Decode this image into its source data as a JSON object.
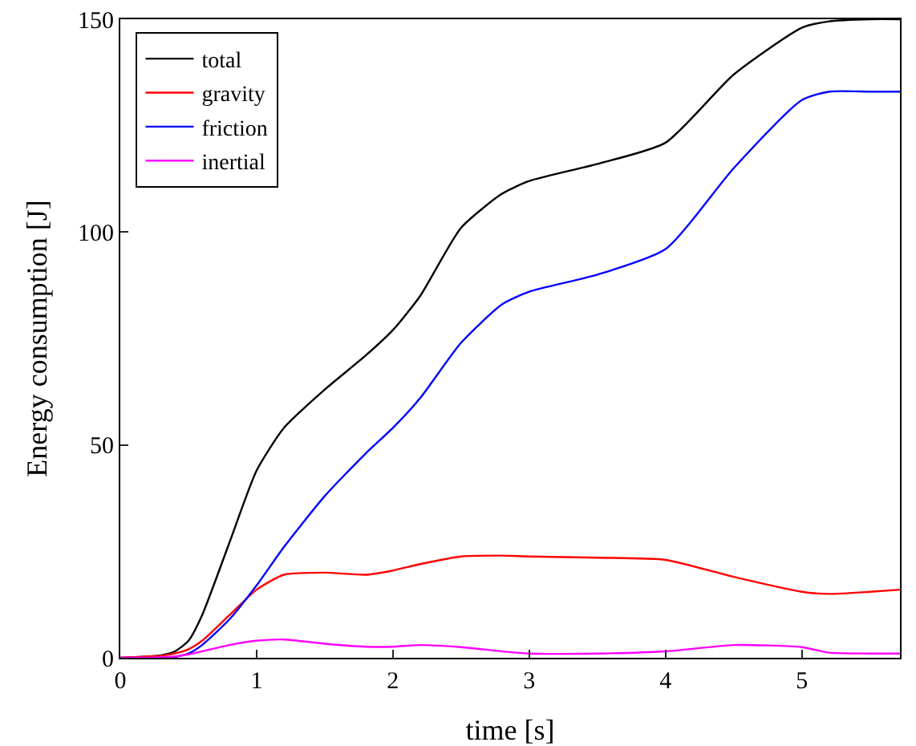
{
  "chart_data": {
    "type": "line",
    "xlabel": "time [s]",
    "ylabel": "Energy consumption [J]",
    "x": [
      0,
      0.2,
      0.3,
      0.4,
      0.5,
      0.6,
      0.8,
      1,
      1.2,
      1.5,
      1.8,
      2,
      2.2,
      2.5,
      2.8,
      3,
      3.5,
      4,
      4.5,
      5,
      5.2,
      5.5,
      5.72
    ],
    "xlim": [
      0,
      5.72
    ],
    "xticks": [
      0,
      1,
      2,
      3,
      4,
      5
    ],
    "ylim": [
      0,
      150
    ],
    "yticks": [
      0,
      50,
      100,
      150
    ],
    "grid": false,
    "legend": "top left",
    "marker": "none",
    "line_style": "solid",
    "series": [
      {
        "name": "total",
        "color": "#000000",
        "values": [
          0,
          0.3,
          0.6,
          1.5,
          4,
          10,
          27,
          44,
          54,
          63,
          71,
          77,
          85,
          101,
          109,
          112,
          116,
          121,
          137,
          148,
          149.5,
          150,
          150
        ]
      },
      {
        "name": "gravity",
        "color": "#ff0000",
        "values": [
          0,
          0.3,
          0.5,
          1,
          2,
          4,
          10,
          16,
          19.5,
          20,
          19.5,
          20.5,
          22,
          23.8,
          24,
          23.8,
          23.5,
          23,
          19,
          15.5,
          15,
          15.5,
          16
        ]
      },
      {
        "name": "friction",
        "color": "#0000ff",
        "values": [
          null,
          null,
          0,
          0.2,
          1,
          3,
          9,
          17,
          26,
          38,
          48,
          54,
          61,
          74,
          83,
          86,
          90,
          96,
          115,
          131,
          133,
          133,
          133
        ]
      },
      {
        "name": "inertial",
        "color": "#ff00ff",
        "values": [
          0,
          0,
          0.1,
          0.3,
          0.8,
          1.5,
          3,
          4,
          4.3,
          3.3,
          2.6,
          2.6,
          3,
          2.5,
          1.5,
          1,
          1,
          1.5,
          3,
          2.5,
          1.2,
          1,
          1
        ]
      }
    ]
  }
}
